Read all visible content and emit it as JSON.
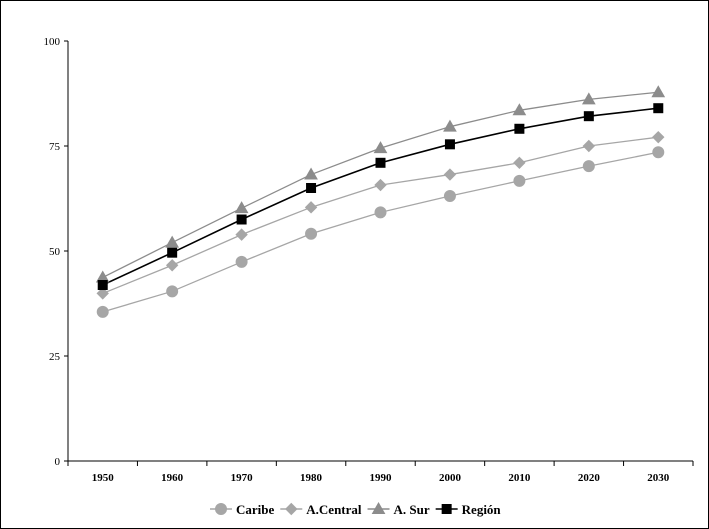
{
  "chart_data": {
    "type": "line",
    "title": "",
    "xlabel": "",
    "ylabel": "",
    "x": [
      "1950",
      "1960",
      "1970",
      "1980",
      "1990",
      "2000",
      "2010",
      "2020",
      "2030"
    ],
    "ylim": [
      0,
      100
    ],
    "yticks": [
      "0",
      "25",
      "50",
      "75",
      "100"
    ],
    "grid": false,
    "legend_position": "bottom",
    "series": [
      {
        "name": "Caribe",
        "marker": "circle",
        "color": "#a6a6a6",
        "values": [
          35.5,
          40.4,
          47.4,
          54.1,
          59.2,
          63.1,
          66.7,
          70.2,
          73.5
        ]
      },
      {
        "name": "A.Central",
        "marker": "diamond",
        "color": "#a6a6a6",
        "values": [
          39.9,
          46.6,
          53.9,
          60.4,
          65.7,
          68.2,
          71.0,
          75.0,
          77.1
        ]
      },
      {
        "name": "A. Sur",
        "marker": "triangle",
        "color": "#8c8c8c",
        "values": [
          43.7,
          52.0,
          60.2,
          68.2,
          74.5,
          79.6,
          83.5,
          86.1,
          87.8
        ]
      },
      {
        "name": "Región",
        "marker": "square",
        "color": "#000000",
        "values": [
          41.9,
          49.6,
          57.5,
          65.0,
          71.0,
          75.4,
          79.1,
          82.1,
          84.0
        ]
      }
    ]
  }
}
